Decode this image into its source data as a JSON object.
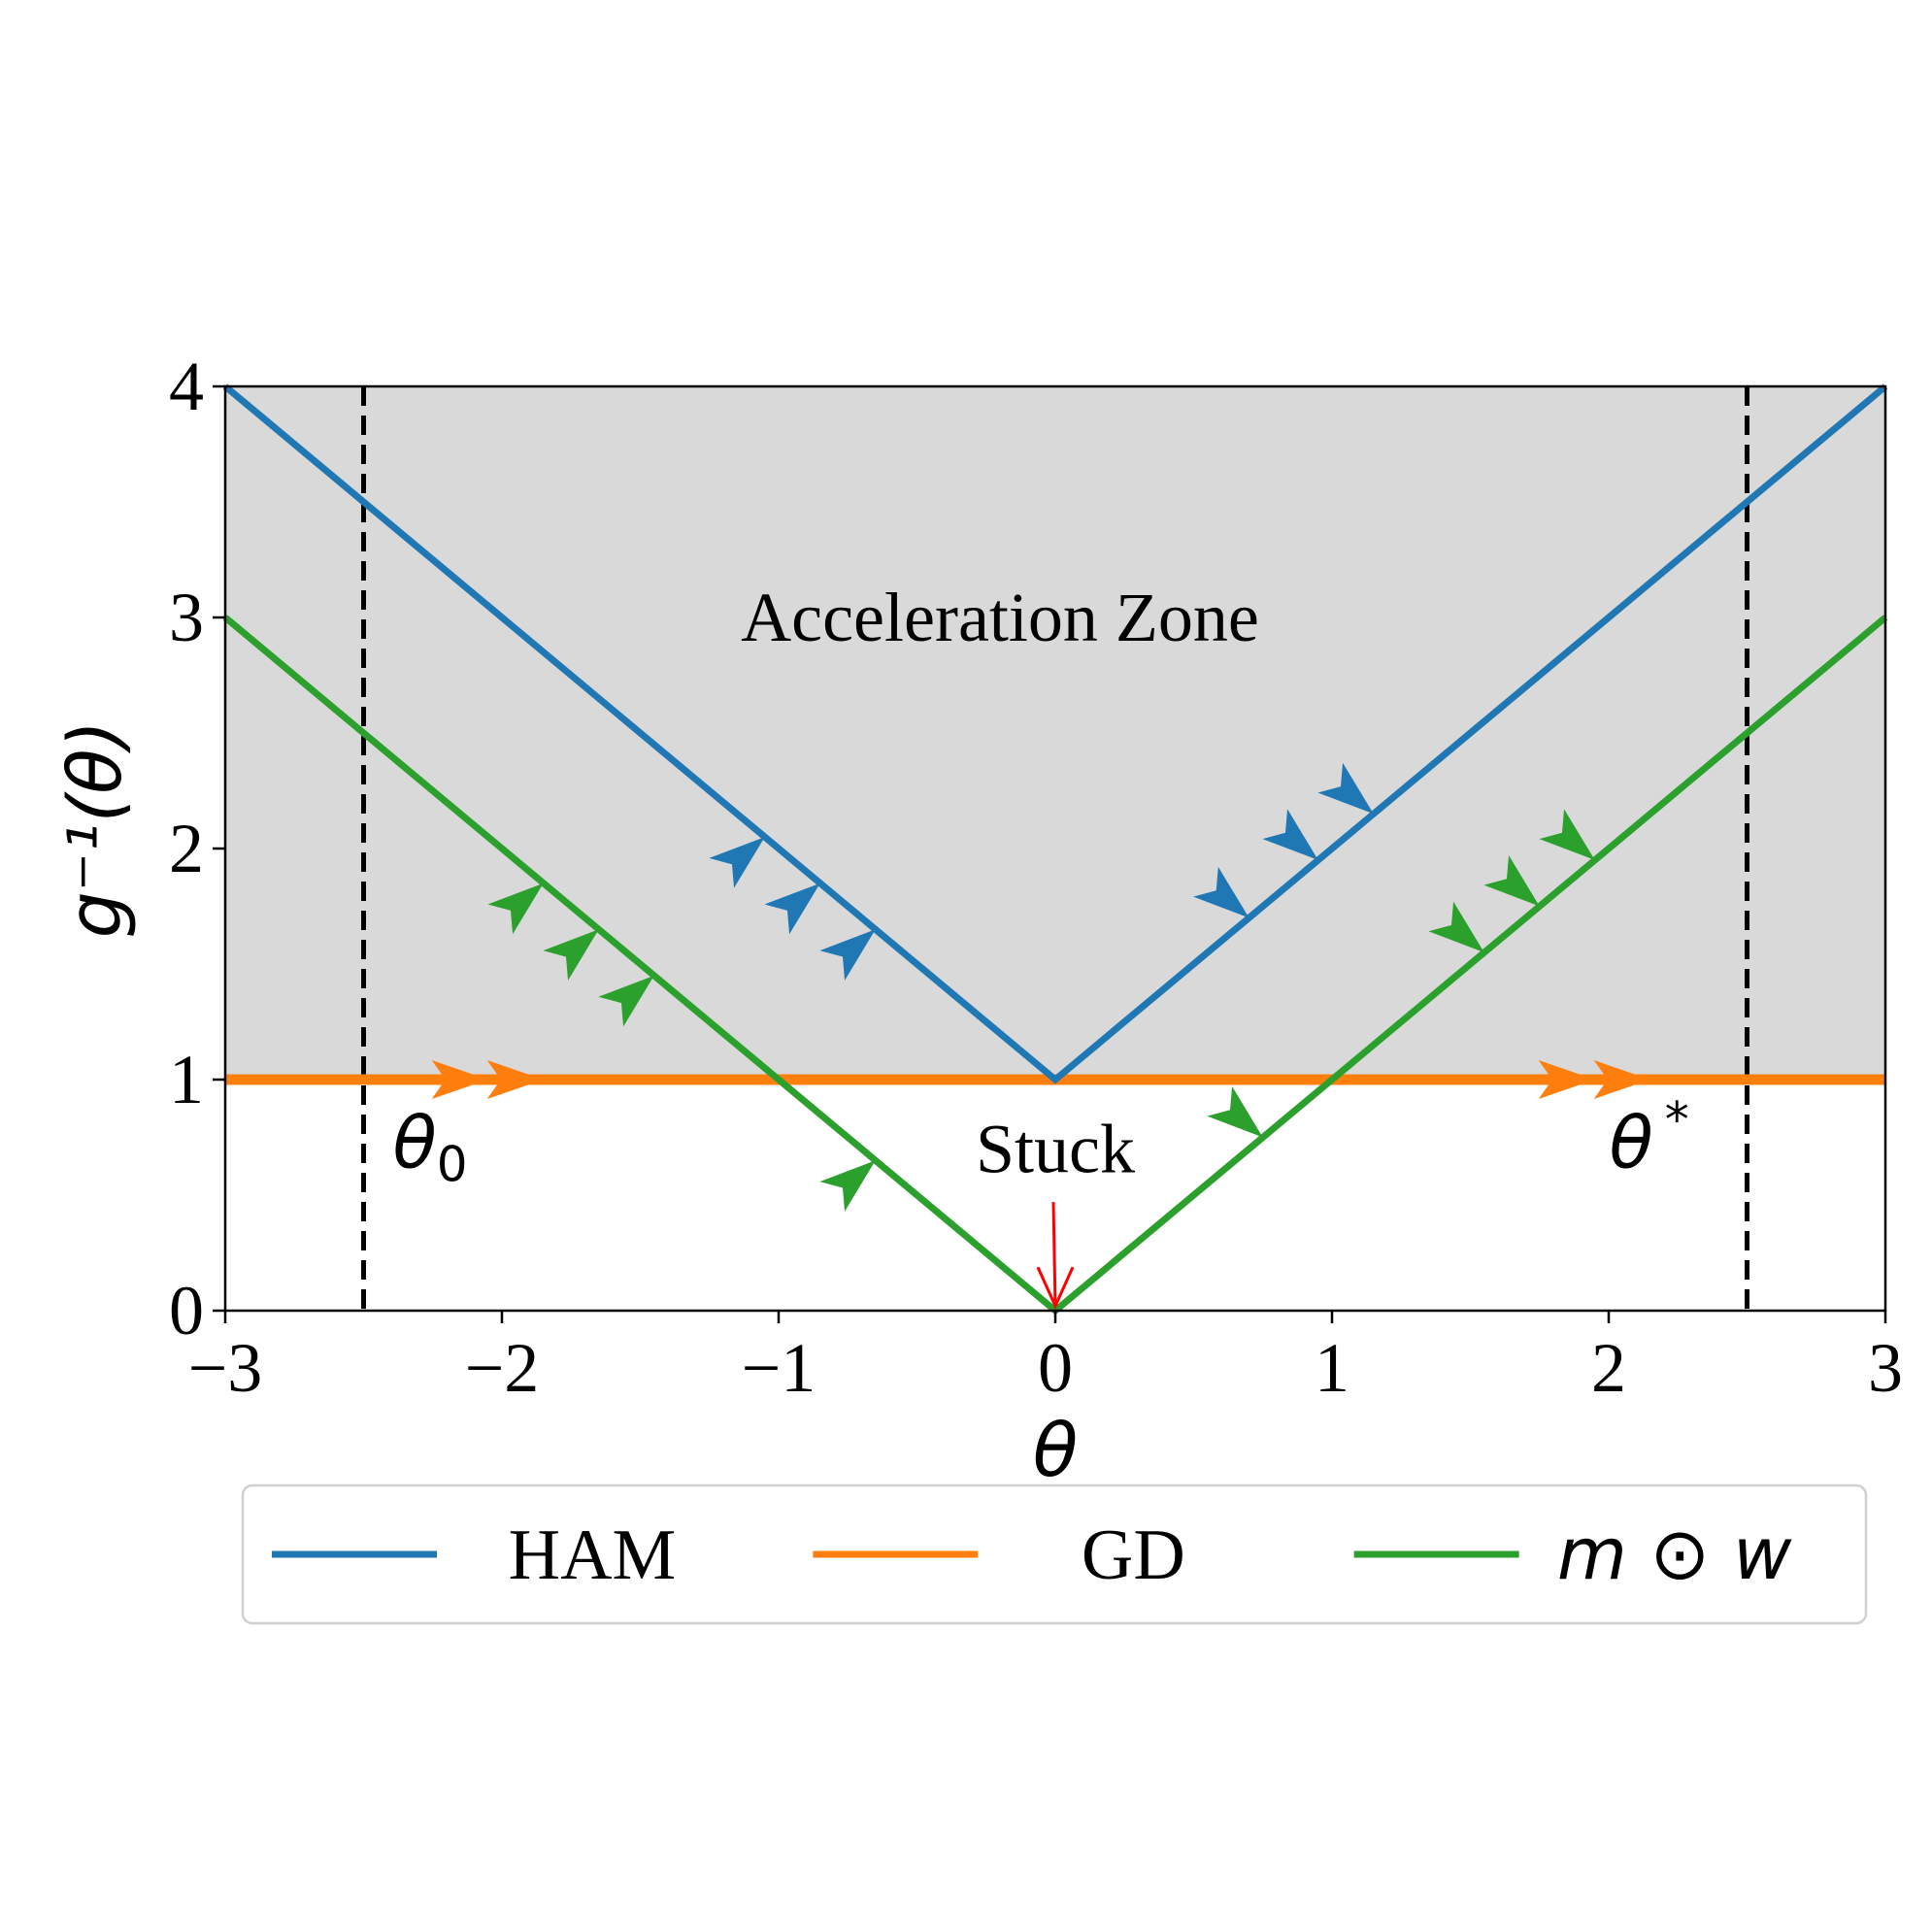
{
  "chart_data": {
    "type": "line",
    "xlabel": "θ",
    "ylabel": "g⁻¹(θ)",
    "xlim": [
      -3,
      3
    ],
    "ylim": [
      0,
      4
    ],
    "xticks": [
      -3,
      -2,
      -1,
      0,
      1,
      2,
      3
    ],
    "xtick_labels": [
      "−3",
      "−2",
      "−1",
      "0",
      "1",
      "2",
      "3"
    ],
    "yticks": [
      0,
      1,
      2,
      3,
      4
    ],
    "ytick_labels": [
      "0",
      "1",
      "2",
      "3",
      "4"
    ],
    "grid": false,
    "shaded_region": {
      "label": "Acceleration Zone",
      "y_from": 1,
      "y_to": 4,
      "color": "#d9d9d9"
    },
    "series": [
      {
        "name": "HAM",
        "color": "#1f77b4",
        "x": [
          -3,
          0,
          3
        ],
        "y": [
          4,
          1,
          4
        ],
        "arrows_x": [
          -1.05,
          -0.85,
          -0.65,
          0.7,
          0.95,
          1.15
        ]
      },
      {
        "name": "GD",
        "color": "#ff7f0e",
        "x": [
          -3,
          3
        ],
        "y": [
          1,
          1
        ],
        "arrows_x": [
          -2.05,
          -1.85,
          1.95,
          2.15
        ]
      },
      {
        "name": "m ⊙ w",
        "color": "#2ca02c",
        "x": [
          -3,
          0,
          3
        ],
        "y": [
          3,
          0,
          3
        ],
        "arrows_x": [
          -1.85,
          -1.65,
          -1.45,
          -0.65,
          0.75,
          1.55,
          1.75,
          1.95
        ]
      }
    ],
    "vlines": [
      {
        "x": -2.5,
        "label_main": "θ",
        "label_sub": "0",
        "style": "dashed",
        "color": "#000000"
      },
      {
        "x": 2.5,
        "label_main": "θ",
        "label_sup": "*",
        "style": "dashed",
        "color": "#000000"
      }
    ],
    "annotations": [
      {
        "text": "Stuck",
        "x": 0,
        "y": 0.7,
        "arrow_from": [
          0,
          0.47
        ],
        "arrow_to": [
          0,
          0.02
        ],
        "arrow_color": "#ff0000"
      }
    ],
    "legend": {
      "placement": "bottom",
      "entries": [
        {
          "text": "HAM",
          "color": "#1f77b4",
          "math": false
        },
        {
          "text": "GD",
          "color": "#ff7f0e",
          "math": false
        },
        {
          "text": "m ⊙ w",
          "color": "#2ca02c",
          "math": true
        }
      ]
    }
  }
}
